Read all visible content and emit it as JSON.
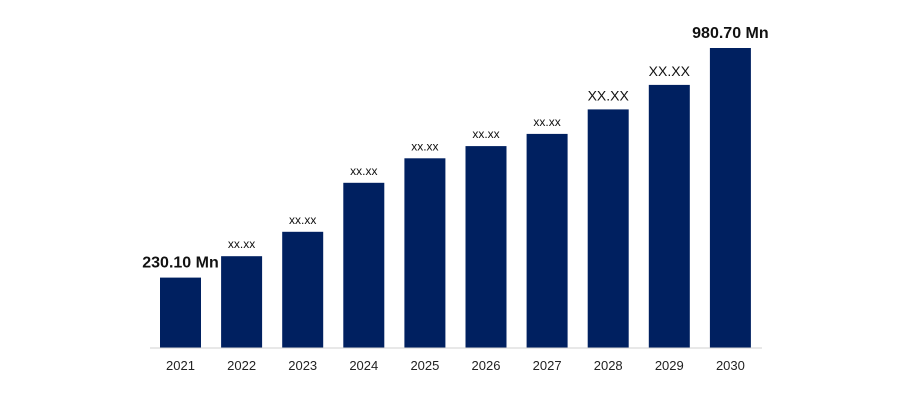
{
  "chart_data": {
    "type": "bar",
    "categories": [
      "2021",
      "2022",
      "2023",
      "2024",
      "2025",
      "2026",
      "2027",
      "2028",
      "2029",
      "2030"
    ],
    "values": [
      230.1,
      300,
      380,
      540,
      620,
      660,
      700,
      780,
      860,
      980.7
    ],
    "data_labels": [
      "230.10 Mn",
      "xx.xx",
      "xx.xx",
      "xx.xx",
      "xx.xx",
      "xx.xx",
      "xx.xx",
      "XX.XX",
      "XX.XX",
      "980.70 Mn"
    ],
    "title": "",
    "xlabel": "",
    "ylabel": "",
    "ylim": [
      0,
      1000
    ],
    "grid": false,
    "legend": "none",
    "bar_color": "#002060"
  }
}
